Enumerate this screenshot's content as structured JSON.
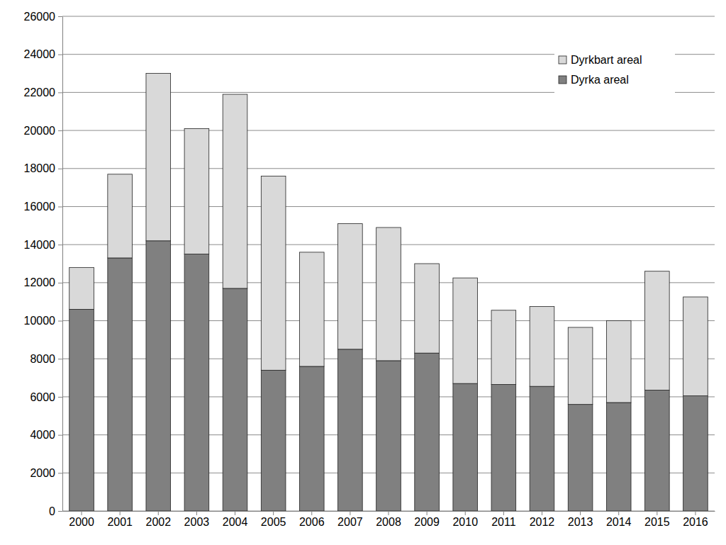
{
  "chart_data": {
    "type": "bar",
    "stacked": true,
    "grid": true,
    "legend": "top right",
    "categories": [
      "2000",
      "2001",
      "2002",
      "2003",
      "2004",
      "2005",
      "2006",
      "2007",
      "2008",
      "2009",
      "2010",
      "2011",
      "2012",
      "2013",
      "2014",
      "2015",
      "2016"
    ],
    "series": [
      {
        "name": "Dyrka areal",
        "color": "#808080",
        "values": [
          10600,
          13300,
          14200,
          13500,
          11700,
          7400,
          7600,
          8500,
          7900,
          8300,
          6700,
          6650,
          6550,
          5600,
          5700,
          6350,
          6050
        ]
      },
      {
        "name": "Dyrkbart areal",
        "color": "#d9d9d9",
        "values": [
          2200,
          4400,
          8800,
          6600,
          10200,
          10200,
          6000,
          6600,
          7000,
          4700,
          5550,
          3900,
          4200,
          4050,
          4300,
          6250,
          5200
        ]
      }
    ],
    "ylim": [
      0,
      26000
    ],
    "yticks": [
      0,
      2000,
      4000,
      6000,
      8000,
      10000,
      12000,
      14000,
      16000,
      18000,
      20000,
      22000,
      24000,
      26000
    ]
  }
}
